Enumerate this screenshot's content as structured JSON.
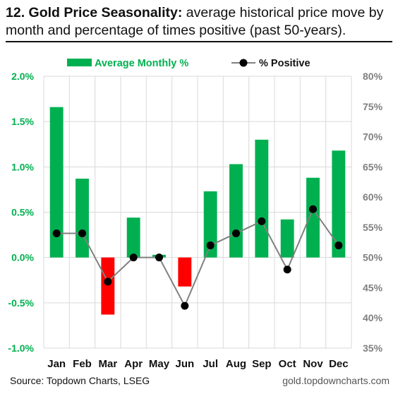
{
  "title_bold": "12. Gold Price Seasonality:",
  "title_rest": " average historical price move by month and percentage of times positive (past 50-years).",
  "source": "Source: Topdown Charts, LSEG",
  "website": "gold.topdowncharts.com",
  "colors": {
    "positive_bar": "#00b050",
    "negative_bar": "#ff0000",
    "line": "#808080",
    "marker": "#000000",
    "left_axis_text": "#00b050",
    "right_axis_text": "#7f7f7f"
  },
  "chart_data": {
    "type": "bar",
    "categories": [
      "Jan",
      "Feb",
      "Mar",
      "Apr",
      "May",
      "Jun",
      "Jul",
      "Aug",
      "Sep",
      "Oct",
      "Nov",
      "Dec"
    ],
    "series": [
      {
        "name": "Average Monthly %",
        "type": "bar",
        "axis": "left",
        "values": [
          1.66,
          0.87,
          -0.63,
          0.44,
          0.03,
          -0.32,
          0.73,
          1.03,
          1.3,
          0.42,
          0.88,
          1.18
        ]
      },
      {
        "name": "% Positive",
        "type": "line",
        "axis": "right",
        "values": [
          54,
          54,
          46,
          50,
          50,
          42,
          52,
          54,
          56,
          48,
          58,
          52
        ]
      }
    ],
    "y_left": {
      "min": -1.0,
      "max": 2.0,
      "ticks": [
        -1.0,
        -0.5,
        0.0,
        0.5,
        1.0,
        1.5,
        2.0
      ],
      "tick_labels": [
        "-1.0%",
        "-0.5%",
        "0.0%",
        "0.5%",
        "1.0%",
        "1.5%",
        "2.0%"
      ]
    },
    "y_right": {
      "min": 35,
      "max": 80,
      "tick_labels": [
        "35%",
        "40%",
        "45%",
        "50%",
        "55%",
        "60%",
        "65%",
        "70%",
        "75%",
        "80%"
      ]
    },
    "legend_position": "top",
    "grid": true
  }
}
